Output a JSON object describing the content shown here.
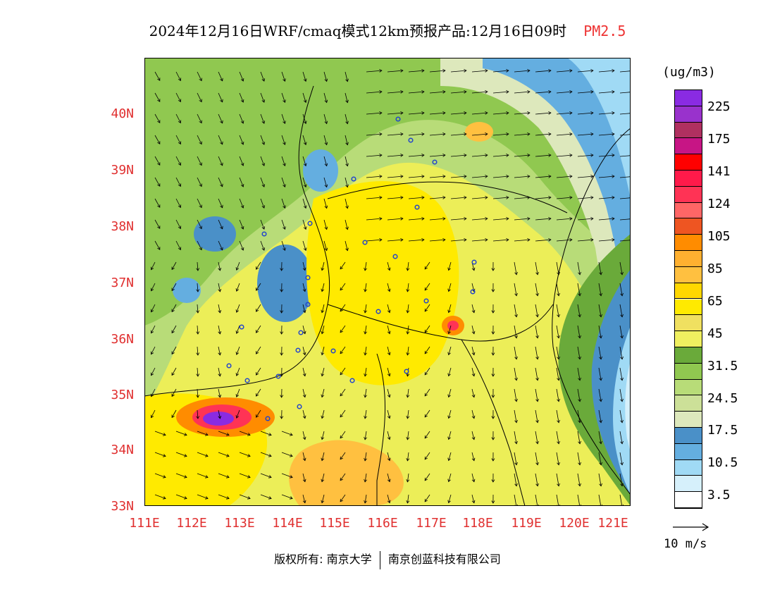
{
  "title": {
    "main": "2024年12月16日WRF/cmaq模式12km预报产品:12月16日09时",
    "pollutant": "PM2.5"
  },
  "map": {
    "lat_labels": [
      "40N",
      "39N",
      "38N",
      "37N",
      "36N",
      "35N",
      "34N",
      "33N"
    ],
    "lon_labels": [
      "111E",
      "112E",
      "113E",
      "114E",
      "115E",
      "116E",
      "117E",
      "118E",
      "119E",
      "120E",
      "121E"
    ],
    "background_color": "#ecee58",
    "hotspots": [
      "central PM2.5 peak near 112.8E 34.7N",
      "secondary peak near 117.6E 36.2N"
    ]
  },
  "legend": {
    "unit": "(ug/m3)",
    "labels": [
      "225",
      "175",
      "141",
      "124",
      "105",
      "85",
      "65",
      "45",
      "31.5",
      "24.5",
      "17.5",
      "10.5",
      "3.5"
    ],
    "colors": [
      "#8a2be2",
      "#9932cc",
      "#b03060",
      "#c71585",
      "#ff0000",
      "#ff1a4a",
      "#ff3355",
      "#ff6666",
      "#ee5522",
      "#ff8c00",
      "#ffb030",
      "#ffc040",
      "#ffd700",
      "#ffea00",
      "#f0e060",
      "#f0f060",
      "#6aaa3a",
      "#90c850",
      "#b8dc78",
      "#cce098",
      "#dde8bc",
      "#4a90c8",
      "#64aee0",
      "#a0daf5",
      "#d6f0fb",
      "#ffffff"
    ]
  },
  "wind_reference": {
    "label": "10 m/s"
  },
  "footer": {
    "copyright": "版权所有: 南京大学",
    "company": "南京创蓝科技有限公司"
  }
}
